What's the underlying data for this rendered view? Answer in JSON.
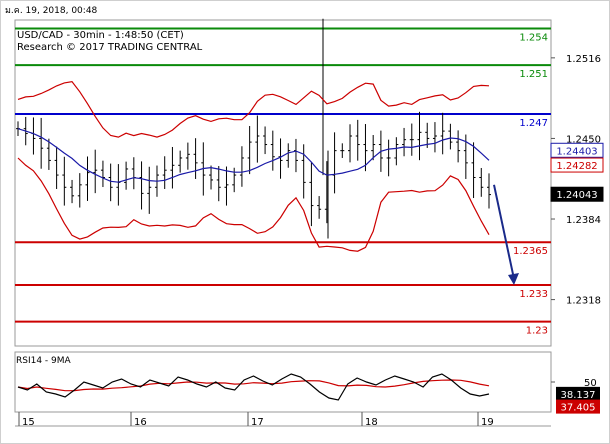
{
  "header": {
    "timestamp": "ม.ค. 19, 2018, 00:48"
  },
  "chart": {
    "symbol_line": "USD/CAD - 30min - 1:48:50 (CET)",
    "research_line": "Research © 2017 TRADING CENTRAL"
  },
  "colors": {
    "background": "#ffffff",
    "price_bars": "#000000",
    "bollinger": "#cc0000",
    "moving_average": "#1a1aa8",
    "resistance": "#0a8a0a",
    "pivot": "#0000cc",
    "support": "#cc0000",
    "arrow": "#1a2a8a",
    "rsi": "#000000",
    "rsi_ma": "#cc0000"
  },
  "chart_data": [
    {
      "type": "line",
      "title": "USD/CAD - 30min",
      "x_axis": {
        "tick_labels": [
          "15",
          "16",
          "17",
          "18",
          "19"
        ]
      },
      "y_axis": {
        "tick_labels": [
          "1.2516",
          "1.2450",
          "1.2384",
          "1.2318"
        ],
        "range": [
          1.228,
          1.2547
        ]
      },
      "levels": [
        {
          "label": "1.254",
          "value": 1.254,
          "kind": "resistance"
        },
        {
          "label": "1.251",
          "value": 1.251,
          "kind": "resistance"
        },
        {
          "label": "1.247",
          "value": 1.247,
          "kind": "pivot"
        },
        {
          "label": "1.2365",
          "value": 1.2365,
          "kind": "support"
        },
        {
          "label": "1.233",
          "value": 1.233,
          "kind": "support"
        },
        {
          "label": "1.23",
          "value": 1.23,
          "kind": "support"
        }
      ],
      "price_badges": [
        {
          "label": "1.24403",
          "value": 1.24403,
          "kind": "moving-average"
        },
        {
          "label": "1.24282",
          "value": 1.24282,
          "kind": "bollinger"
        },
        {
          "label": "1.24043",
          "value": 1.24043,
          "kind": "last-price"
        }
      ],
      "close_series": [
        1.2458,
        1.2454,
        1.245,
        1.2442,
        1.2432,
        1.242,
        1.241,
        1.2403,
        1.2412,
        1.2422,
        1.2424,
        1.2418,
        1.241,
        1.2414,
        1.2425,
        1.2418,
        1.2405,
        1.241,
        1.242,
        1.2424,
        1.2428,
        1.2434,
        1.2437,
        1.243,
        1.242,
        1.2416,
        1.241,
        1.2412,
        1.242,
        1.2434,
        1.2447,
        1.2452,
        1.2445,
        1.2435,
        1.2432,
        1.244,
        1.2432,
        1.2414,
        1.2395,
        1.2392,
        1.242,
        1.244,
        1.244,
        1.2452,
        1.2445,
        1.244,
        1.2445,
        1.2434,
        1.2434,
        1.2445,
        1.2449,
        1.2449,
        1.2455,
        1.245,
        1.2452,
        1.2456,
        1.2447,
        1.244,
        1.243,
        1.2418,
        1.241,
        1.2404
      ],
      "forecast_arrow": {
        "from": 1.2412,
        "to": 1.233
      }
    },
    {
      "type": "line",
      "title": "RSI14 - 9MA",
      "y_axis": {
        "tick_labels": [
          "50"
        ]
      },
      "badges": [
        {
          "label": "38.137",
          "value": 38.137,
          "kind": "rsi"
        },
        {
          "label": "37.405",
          "value": 37.405,
          "kind": "rsi-ma"
        }
      ],
      "rsi_series": [
        45,
        42,
        48,
        40,
        38,
        35,
        42,
        50,
        47,
        44,
        50,
        53,
        48,
        45,
        52,
        49,
        46,
        55,
        52,
        48,
        45,
        50,
        44,
        42,
        52,
        56,
        51,
        47,
        53,
        58,
        55,
        48,
        40,
        34,
        32,
        48,
        54,
        50,
        47,
        52,
        56,
        53,
        50,
        45,
        55,
        58,
        52,
        44,
        38,
        36,
        38
      ]
    }
  ]
}
